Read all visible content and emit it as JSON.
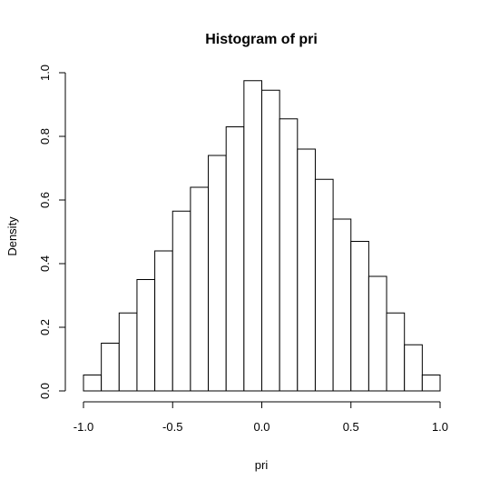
{
  "chart_data": {
    "type": "bar",
    "title": "Histogram of pri",
    "xlabel": "pri",
    "ylabel": "Density",
    "xlim": [
      -1.0,
      1.0
    ],
    "ylim": [
      0,
      1.0
    ],
    "bin_width": 0.1,
    "bins": [
      {
        "x0": -1.0,
        "x1": -0.9,
        "value": 0.05
      },
      {
        "x0": -0.9,
        "x1": -0.8,
        "value": 0.15
      },
      {
        "x0": -0.8,
        "x1": -0.7,
        "value": 0.245
      },
      {
        "x0": -0.7,
        "x1": -0.6,
        "value": 0.35
      },
      {
        "x0": -0.6,
        "x1": -0.5,
        "value": 0.44
      },
      {
        "x0": -0.5,
        "x1": -0.4,
        "value": 0.565
      },
      {
        "x0": -0.4,
        "x1": -0.3,
        "value": 0.64
      },
      {
        "x0": -0.3,
        "x1": -0.2,
        "value": 0.74
      },
      {
        "x0": -0.2,
        "x1": -0.1,
        "value": 0.83
      },
      {
        "x0": -0.1,
        "x1": 0.0,
        "value": 0.975
      },
      {
        "x0": 0.0,
        "x1": 0.1,
        "value": 0.945
      },
      {
        "x0": 0.1,
        "x1": 0.2,
        "value": 0.855
      },
      {
        "x0": 0.2,
        "x1": 0.3,
        "value": 0.76
      },
      {
        "x0": 0.3,
        "x1": 0.4,
        "value": 0.665
      },
      {
        "x0": 0.4,
        "x1": 0.5,
        "value": 0.54
      },
      {
        "x0": 0.5,
        "x1": 0.6,
        "value": 0.47
      },
      {
        "x0": 0.6,
        "x1": 0.7,
        "value": 0.36
      },
      {
        "x0": 0.7,
        "x1": 0.8,
        "value": 0.245
      },
      {
        "x0": 0.8,
        "x1": 0.9,
        "value": 0.145
      },
      {
        "x0": 0.9,
        "x1": 1.0,
        "value": 0.05
      }
    ],
    "x_ticks": [
      -1.0,
      -0.5,
      0.0,
      0.5,
      1.0
    ],
    "x_tick_labels": [
      "-1.0",
      "-0.5",
      "0.0",
      "0.5",
      "1.0"
    ],
    "y_ticks": [
      0.0,
      0.2,
      0.4,
      0.6,
      0.8,
      1.0
    ],
    "y_tick_labels": [
      "0.0",
      "0.2",
      "0.4",
      "0.6",
      "0.8",
      "1.0"
    ],
    "grid": false,
    "legend": false
  }
}
